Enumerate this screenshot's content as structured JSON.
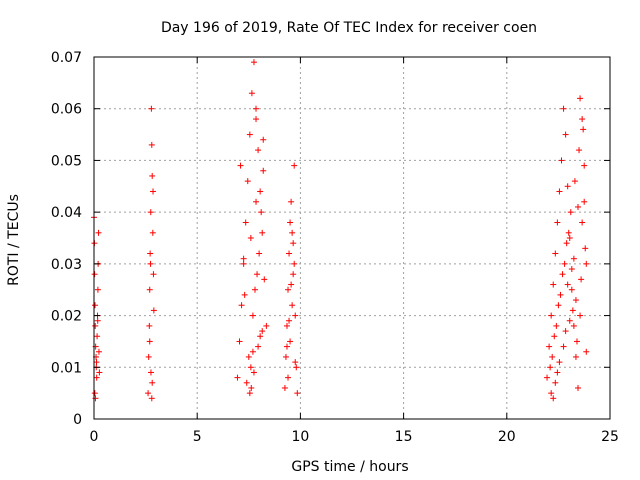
{
  "chart_data": {
    "type": "scatter",
    "title": "Day 196 of 2019, Rate Of TEC Index for receiver coen",
    "xlabel": "GPS time / hours",
    "ylabel": "ROTI / TECUs",
    "xlim": [
      0,
      25
    ],
    "ylim": [
      0,
      0.07
    ],
    "xticks": [
      0,
      5,
      10,
      15,
      20,
      25
    ],
    "xtick_labels": [
      "0",
      "5",
      "10",
      "15",
      "20",
      "25"
    ],
    "yticks": [
      0,
      0.01,
      0.02,
      0.03,
      0.04,
      0.05,
      0.06,
      0.07
    ],
    "ytick_labels": [
      "0",
      "0.01",
      "0.02",
      "0.03",
      "0.04",
      "0.05",
      "0.06",
      "0.07"
    ],
    "grid": true,
    "marker": "+",
    "color": "#ff0000",
    "series": [
      {
        "name": "ROTI",
        "x": [
          0.0,
          0.02,
          0.03,
          0.05,
          0.06,
          0.08,
          0.1,
          0.11,
          0.13,
          0.15,
          0.17,
          0.19,
          0.2,
          0.22,
          0.24,
          0.26,
          0.04,
          0.07,
          0.12,
          0.18,
          2.62,
          2.65,
          2.68,
          2.7,
          2.72,
          2.75,
          2.78,
          2.8,
          2.82,
          2.85,
          2.88,
          2.9,
          2.7,
          2.76,
          2.82,
          2.86,
          2.74,
          2.8,
          6.95,
          7.05,
          7.15,
          7.25,
          7.35,
          7.45,
          7.55,
          7.65,
          7.75,
          7.85,
          7.95,
          8.05,
          8.15,
          8.25,
          8.35,
          7.5,
          7.6,
          7.7,
          7.8,
          7.9,
          8.0,
          8.1,
          8.2,
          7.4,
          7.55,
          7.75,
          7.95,
          8.15,
          7.3,
          7.6,
          7.85,
          8.05,
          7.62,
          7.7,
          7.85,
          8.2,
          7.1,
          7.25,
          9.25,
          9.3,
          9.35,
          9.4,
          9.45,
          9.5,
          9.55,
          9.6,
          9.65,
          9.7,
          9.75,
          9.8,
          9.85,
          9.4,
          9.5,
          9.6,
          9.7,
          9.35,
          9.55,
          9.75,
          9.65,
          9.45,
          21.95,
          22.05,
          22.15,
          22.25,
          22.35,
          22.45,
          22.55,
          22.65,
          22.75,
          22.85,
          22.95,
          23.05,
          23.15,
          23.25,
          23.35,
          23.45,
          23.55,
          23.65,
          23.75,
          23.85,
          22.1,
          22.3,
          22.5,
          22.7,
          22.9,
          23.1,
          23.3,
          23.5,
          23.7,
          22.2,
          22.4,
          22.6,
          22.8,
          23.0,
          23.2,
          23.4,
          23.6,
          23.8,
          22.15,
          22.45,
          22.75,
          23.05,
          23.35,
          23.65,
          22.25,
          22.55,
          22.85,
          23.15,
          23.45,
          23.75,
          22.35,
          22.95,
          23.25,
          23.55,
          23.85
        ],
        "y": [
          0.039,
          0.034,
          0.028,
          0.022,
          0.018,
          0.014,
          0.012,
          0.01,
          0.008,
          0.016,
          0.02,
          0.025,
          0.03,
          0.036,
          0.013,
          0.009,
          0.005,
          0.004,
          0.011,
          0.019,
          0.005,
          0.012,
          0.018,
          0.025,
          0.032,
          0.04,
          0.06,
          0.053,
          0.047,
          0.036,
          0.028,
          0.021,
          0.015,
          0.009,
          0.007,
          0.044,
          0.03,
          0.004,
          0.008,
          0.015,
          0.022,
          0.03,
          0.038,
          0.046,
          0.055,
          0.063,
          0.069,
          0.058,
          0.052,
          0.044,
          0.036,
          0.027,
          0.018,
          0.012,
          0.01,
          0.02,
          0.025,
          0.028,
          0.032,
          0.04,
          0.048,
          0.007,
          0.005,
          0.009,
          0.014,
          0.017,
          0.024,
          0.035,
          0.042,
          0.016,
          0.006,
          0.013,
          0.06,
          0.054,
          0.049,
          0.031,
          0.006,
          0.012,
          0.018,
          0.025,
          0.032,
          0.038,
          0.042,
          0.036,
          0.028,
          0.049,
          0.02,
          0.01,
          0.005,
          0.008,
          0.015,
          0.022,
          0.03,
          0.014,
          0.026,
          0.011,
          0.034,
          0.019,
          0.008,
          0.014,
          0.02,
          0.026,
          0.032,
          0.038,
          0.044,
          0.05,
          0.06,
          0.055,
          0.045,
          0.035,
          0.025,
          0.018,
          0.012,
          0.006,
          0.062,
          0.058,
          0.042,
          0.03,
          0.01,
          0.016,
          0.022,
          0.028,
          0.034,
          0.04,
          0.046,
          0.052,
          0.056,
          0.012,
          0.018,
          0.024,
          0.03,
          0.036,
          0.021,
          0.015,
          0.027,
          0.033,
          0.005,
          0.009,
          0.014,
          0.019,
          0.023,
          0.038,
          0.004,
          0.011,
          0.017,
          0.029,
          0.041,
          0.049,
          0.007,
          0.026,
          0.031,
          0.02,
          0.013
        ]
      }
    ]
  }
}
